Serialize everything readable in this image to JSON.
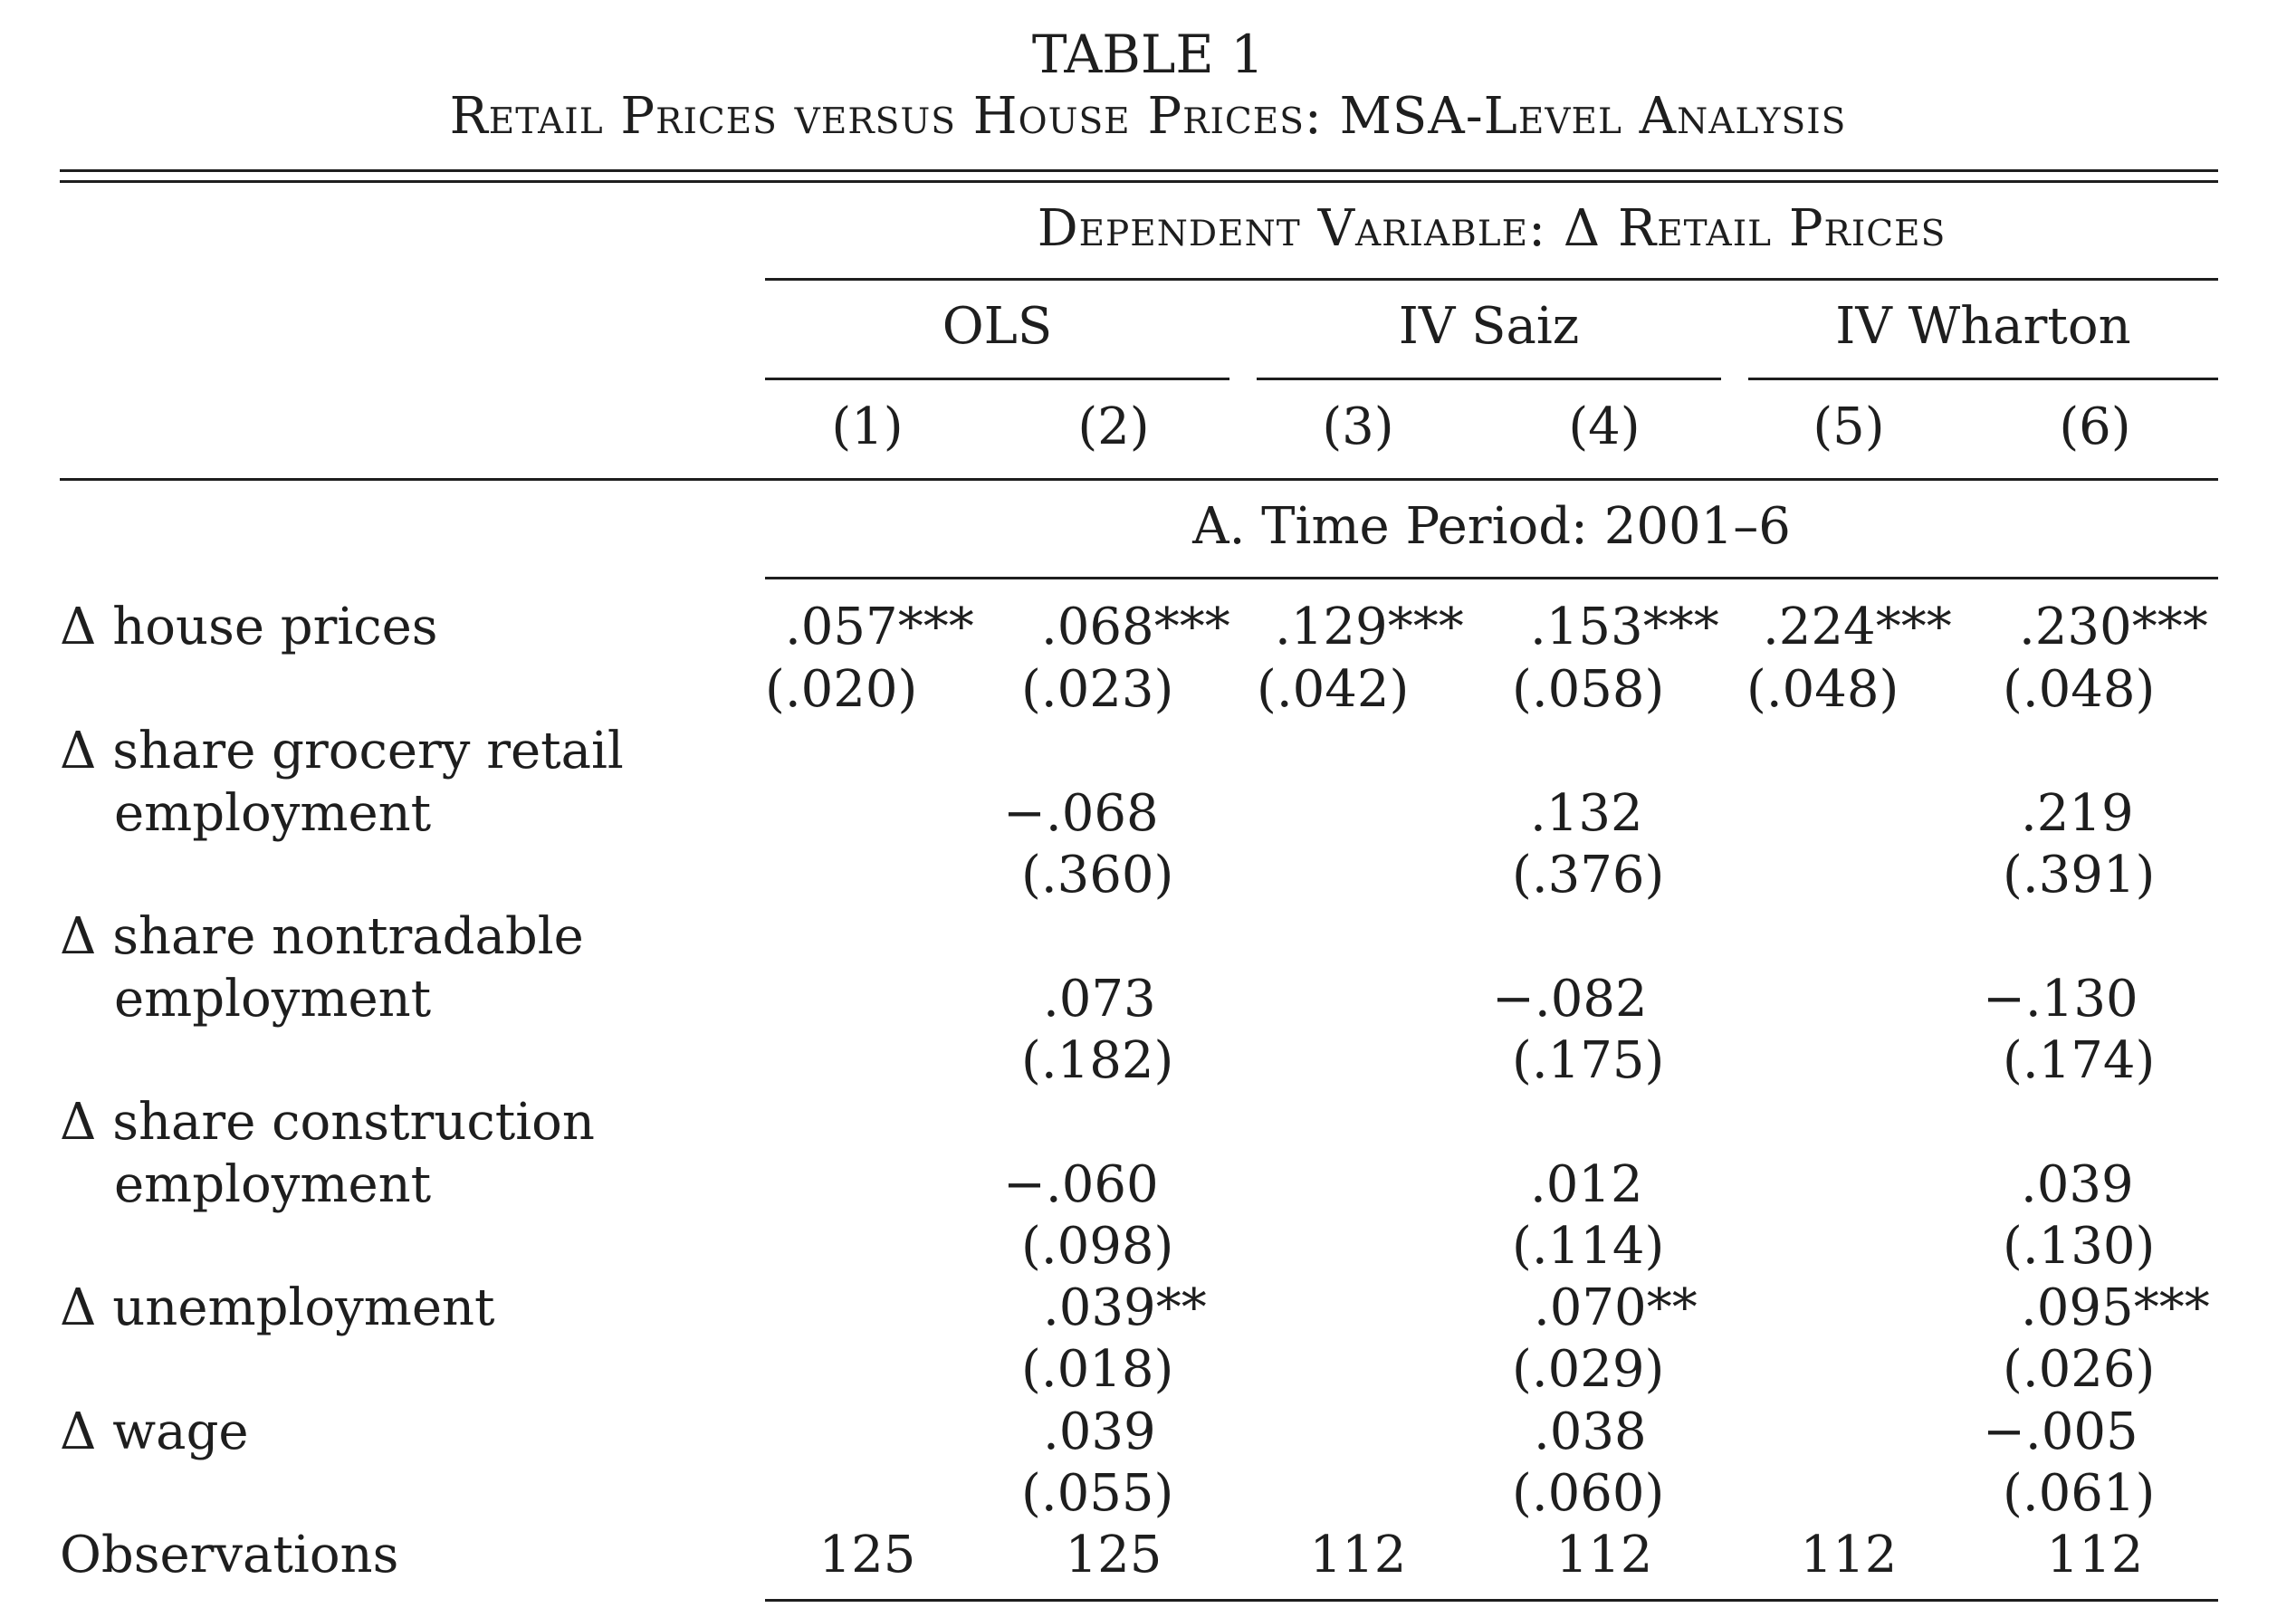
{
  "title": "TABLE 1",
  "subtitle": "Retail Prices versus House Prices: MSA-Level Analysis",
  "dependent_variable": "Dependent Variable: Δ Retail Prices",
  "groups": [
    "OLS",
    "IV Saiz",
    "IV Wharton"
  ],
  "columns": [
    "(1)",
    "(2)",
    "(3)",
    "(4)",
    "(5)",
    "(6)"
  ],
  "panel": "A. Time Period: 2001–6",
  "rows": [
    {
      "label": [
        "Δ house prices"
      ],
      "coef": [
        ".057***",
        ".068***",
        ".129***",
        ".153***",
        ".224***",
        ".230***"
      ],
      "se": [
        "(.020)",
        "(.023)",
        "(.042)",
        "(.058)",
        "(.048)",
        "(.048)"
      ]
    },
    {
      "label": [
        "Δ share grocery retail",
        "employment"
      ],
      "coef": [
        "",
        "−.068",
        "",
        ".132",
        "",
        ".219"
      ],
      "se": [
        "",
        "(.360)",
        "",
        "(.376)",
        "",
        "(.391)"
      ]
    },
    {
      "label": [
        "Δ share nontradable",
        "employment"
      ],
      "coef": [
        "",
        ".073",
        "",
        "−.082",
        "",
        "−.130"
      ],
      "se": [
        "",
        "(.182)",
        "",
        "(.175)",
        "",
        "(.174)"
      ]
    },
    {
      "label": [
        "Δ share construction",
        "employment"
      ],
      "coef": [
        "",
        "−.060",
        "",
        ".012",
        "",
        ".039"
      ],
      "se": [
        "",
        "(.098)",
        "",
        "(.114)",
        "",
        "(.130)"
      ]
    },
    {
      "label": [
        "Δ unemployment"
      ],
      "coef": [
        "",
        ".039**",
        "",
        ".070**",
        "",
        ".095***"
      ],
      "se": [
        "",
        "(.018)",
        "",
        "(.029)",
        "",
        "(.026)"
      ]
    },
    {
      "label": [
        "Δ wage"
      ],
      "coef": [
        "",
        ".039",
        "",
        ".038",
        "",
        "−.005"
      ],
      "se": [
        "",
        "(.055)",
        "",
        "(.060)",
        "",
        "(.061)"
      ]
    }
  ],
  "observations_label": "Observations",
  "observations": [
    "125",
    "125",
    "112",
    "112",
    "112",
    "112"
  ]
}
